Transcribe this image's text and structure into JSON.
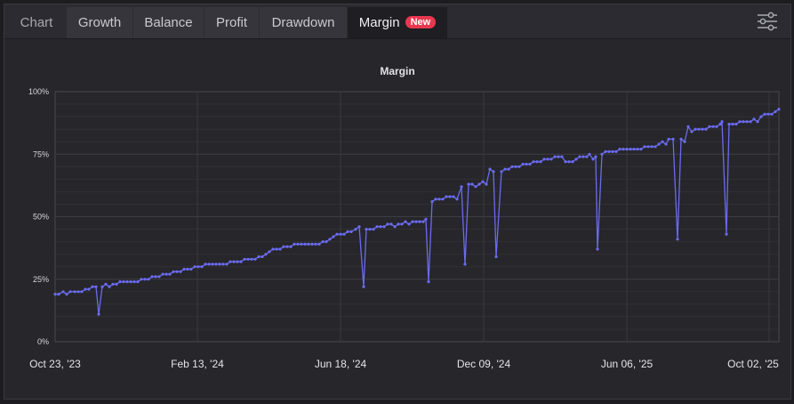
{
  "tabs": [
    {
      "label": "Chart",
      "active": false
    },
    {
      "label": "Growth",
      "active": false
    },
    {
      "label": "Balance",
      "active": false
    },
    {
      "label": "Profit",
      "active": false
    },
    {
      "label": "Drawdown",
      "active": false
    },
    {
      "label": "Margin",
      "active": true,
      "badge": "New"
    }
  ],
  "toolbar": {
    "settings_icon": "sliders-icon"
  },
  "colors": {
    "line": "#6b6bf0",
    "badge": "#e8384f",
    "background": "#26262b",
    "grid": "#3a3a40"
  },
  "chart_data": {
    "type": "line",
    "title": "Margin",
    "xlabel": "",
    "ylabel": "",
    "ylim": [
      0,
      100
    ],
    "y_ticks": [
      "0%",
      "25%",
      "50%",
      "75%",
      "100%"
    ],
    "x_ticks": [
      "Oct 23, '23",
      "Feb 13, '24",
      "Jun 18, '24",
      "Dec 09, '24",
      "Jun 06, '25",
      "Oct 02, '25"
    ],
    "grid": true,
    "legend": "none",
    "series": [
      {
        "name": "Margin",
        "note": "x is pixel position along date axis (62 = Oct 23 '23, 865 = Oct 02 '25); y is percent",
        "points": [
          [
            62,
            19
          ],
          [
            66,
            19
          ],
          [
            71,
            20
          ],
          [
            75,
            19
          ],
          [
            79,
            20
          ],
          [
            84,
            20
          ],
          [
            88,
            20
          ],
          [
            92,
            20
          ],
          [
            96,
            21
          ],
          [
            100,
            21
          ],
          [
            104,
            22
          ],
          [
            108,
            22
          ],
          [
            111,
            11
          ],
          [
            115,
            22
          ],
          [
            119,
            23
          ],
          [
            123,
            22
          ],
          [
            127,
            23
          ],
          [
            131,
            23
          ],
          [
            135,
            24
          ],
          [
            139,
            24
          ],
          [
            143,
            24
          ],
          [
            147,
            24
          ],
          [
            151,
            24
          ],
          [
            155,
            24
          ],
          [
            159,
            25
          ],
          [
            163,
            25
          ],
          [
            167,
            25
          ],
          [
            171,
            26
          ],
          [
            175,
            26
          ],
          [
            179,
            26
          ],
          [
            183,
            27
          ],
          [
            187,
            27
          ],
          [
            191,
            27
          ],
          [
            195,
            28
          ],
          [
            199,
            28
          ],
          [
            203,
            28
          ],
          [
            207,
            29
          ],
          [
            211,
            29
          ],
          [
            215,
            29
          ],
          [
            219,
            30
          ],
          [
            223,
            30
          ],
          [
            227,
            30
          ],
          [
            231,
            31
          ],
          [
            235,
            31
          ],
          [
            239,
            31
          ],
          [
            243,
            31
          ],
          [
            247,
            31
          ],
          [
            251,
            31
          ],
          [
            255,
            31
          ],
          [
            259,
            32
          ],
          [
            263,
            32
          ],
          [
            267,
            32
          ],
          [
            271,
            32
          ],
          [
            275,
            33
          ],
          [
            279,
            33
          ],
          [
            283,
            33
          ],
          [
            287,
            33
          ],
          [
            291,
            34
          ],
          [
            295,
            34
          ],
          [
            299,
            35
          ],
          [
            303,
            36
          ],
          [
            307,
            37
          ],
          [
            311,
            37
          ],
          [
            315,
            37
          ],
          [
            319,
            38
          ],
          [
            323,
            38
          ],
          [
            327,
            38
          ],
          [
            331,
            39
          ],
          [
            335,
            39
          ],
          [
            339,
            39
          ],
          [
            343,
            39
          ],
          [
            347,
            39
          ],
          [
            351,
            39
          ],
          [
            355,
            39
          ],
          [
            359,
            39
          ],
          [
            363,
            40
          ],
          [
            367,
            40
          ],
          [
            371,
            41
          ],
          [
            375,
            42
          ],
          [
            379,
            43
          ],
          [
            383,
            43
          ],
          [
            387,
            43
          ],
          [
            391,
            44
          ],
          [
            395,
            44
          ],
          [
            400,
            45
          ],
          [
            404,
            46
          ],
          [
            409,
            22
          ],
          [
            412,
            45
          ],
          [
            416,
            45
          ],
          [
            420,
            45
          ],
          [
            424,
            46
          ],
          [
            428,
            46
          ],
          [
            432,
            46
          ],
          [
            436,
            47
          ],
          [
            440,
            47
          ],
          [
            444,
            46
          ],
          [
            448,
            47
          ],
          [
            452,
            47
          ],
          [
            456,
            48
          ],
          [
            460,
            47
          ],
          [
            464,
            48
          ],
          [
            468,
            48
          ],
          [
            472,
            48
          ],
          [
            476,
            48
          ],
          [
            479,
            49
          ],
          [
            482,
            24
          ],
          [
            486,
            56
          ],
          [
            490,
            57
          ],
          [
            494,
            57
          ],
          [
            498,
            57
          ],
          [
            502,
            58
          ],
          [
            506,
            58
          ],
          [
            510,
            58
          ],
          [
            514,
            57
          ],
          [
            519,
            62
          ],
          [
            523,
            31
          ],
          [
            527,
            63
          ],
          [
            531,
            63
          ],
          [
            535,
            62
          ],
          [
            539,
            63
          ],
          [
            543,
            64
          ],
          [
            547,
            63
          ],
          [
            551,
            69
          ],
          [
            555,
            68
          ],
          [
            558,
            34
          ],
          [
            564,
            68
          ],
          [
            568,
            69
          ],
          [
            572,
            69
          ],
          [
            576,
            70
          ],
          [
            580,
            70
          ],
          [
            584,
            70
          ],
          [
            588,
            71
          ],
          [
            592,
            71
          ],
          [
            596,
            71
          ],
          [
            600,
            72
          ],
          [
            604,
            72
          ],
          [
            608,
            72
          ],
          [
            612,
            73
          ],
          [
            616,
            73
          ],
          [
            620,
            73
          ],
          [
            624,
            74
          ],
          [
            628,
            74
          ],
          [
            632,
            74
          ],
          [
            636,
            72
          ],
          [
            640,
            72
          ],
          [
            644,
            72
          ],
          [
            648,
            73
          ],
          [
            652,
            74
          ],
          [
            656,
            74
          ],
          [
            660,
            74
          ],
          [
            663,
            75
          ],
          [
            667,
            73
          ],
          [
            670,
            74
          ],
          [
            672,
            37
          ],
          [
            677,
            75
          ],
          [
            681,
            76
          ],
          [
            685,
            76
          ],
          [
            689,
            76
          ],
          [
            693,
            76
          ],
          [
            697,
            77
          ],
          [
            701,
            77
          ],
          [
            705,
            77
          ],
          [
            709,
            77
          ],
          [
            713,
            77
          ],
          [
            717,
            77
          ],
          [
            721,
            77
          ],
          [
            725,
            78
          ],
          [
            729,
            78
          ],
          [
            733,
            78
          ],
          [
            737,
            78
          ],
          [
            741,
            79
          ],
          [
            745,
            80
          ],
          [
            749,
            79
          ],
          [
            752,
            81
          ],
          [
            757,
            81
          ],
          [
            762,
            41
          ],
          [
            766,
            81
          ],
          [
            770,
            80
          ],
          [
            774,
            86
          ],
          [
            778,
            84
          ],
          [
            782,
            85
          ],
          [
            786,
            85
          ],
          [
            790,
            85
          ],
          [
            794,
            85
          ],
          [
            798,
            86
          ],
          [
            802,
            86
          ],
          [
            806,
            86
          ],
          [
            810,
            87
          ],
          [
            812,
            88
          ],
          [
            817,
            43
          ],
          [
            820,
            87
          ],
          [
            824,
            87
          ],
          [
            828,
            87
          ],
          [
            832,
            88
          ],
          [
            836,
            88
          ],
          [
            840,
            88
          ],
          [
            844,
            88
          ],
          [
            848,
            89
          ],
          [
            852,
            88
          ],
          [
            856,
            90
          ],
          [
            860,
            91
          ],
          [
            864,
            91
          ],
          [
            868,
            91
          ],
          [
            872,
            92
          ],
          [
            876,
            93
          ]
        ]
      }
    ]
  }
}
